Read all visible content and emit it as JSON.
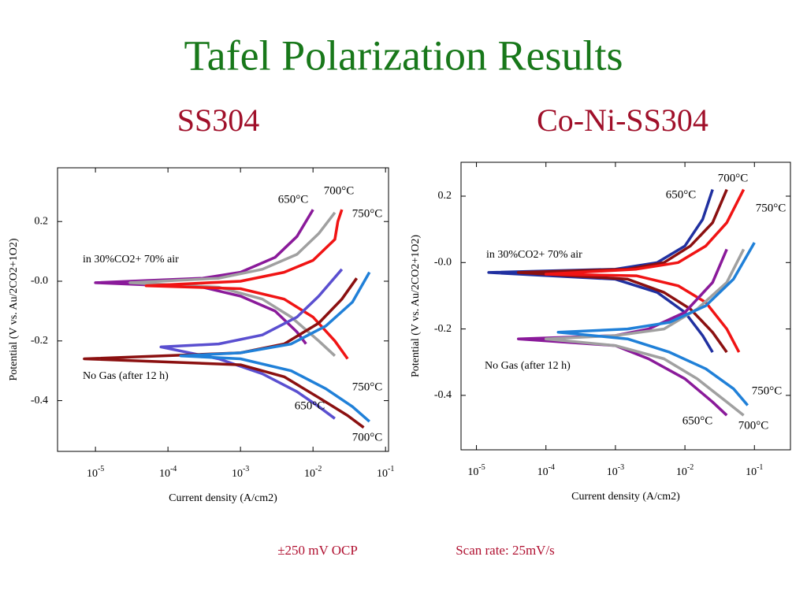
{
  "title": "Tafel Polarization Results",
  "notes": [
    "±250 mV OCP",
    "Scan rate: 25mV/s"
  ],
  "chart_data": [
    {
      "type": "line",
      "title": "SS304",
      "x_label": "Current density (A/cm2)",
      "y_label": "Potential (V vs. Au/2CO2+1O2)",
      "xscale": "log",
      "xlim": [
        3e-06,
        0.11
      ],
      "ylim": [
        -0.57,
        0.38
      ],
      "xticks": [
        {
          "value": 1e-05,
          "label": "10",
          "sup": "-5"
        },
        {
          "value": 0.0001,
          "label": "10",
          "sup": "-4"
        },
        {
          "value": 0.001,
          "label": "10",
          "sup": "-3"
        },
        {
          "value": 0.01,
          "label": "10",
          "sup": "-2"
        },
        {
          "value": 0.1,
          "label": "10",
          "sup": "-1"
        }
      ],
      "yticks": [
        0.2,
        {
          "value": 0,
          "label": "-0.0"
        },
        -0.2,
        -0.4
      ],
      "annotations": [
        "in 30%CO2+ 70% air",
        "No Gas (after 12 h)"
      ],
      "series": [
        {
          "name": "650°C",
          "color": "#8a1a9a",
          "x": [
            0.008,
            0.006,
            0.003,
            0.001,
            0.0003,
            1e-05,
            0.0003,
            0.001,
            0.003,
            0.006,
            0.01
          ],
          "values": [
            -0.21,
            -0.17,
            -0.1,
            -0.05,
            -0.02,
            -0.005,
            0.01,
            0.03,
            0.08,
            0.15,
            0.24
          ]
        },
        {
          "name": "700°C",
          "color": "#a0a0a0",
          "x": [
            0.02,
            0.012,
            0.005,
            0.002,
            0.0005,
            3e-05,
            0.0005,
            0.002,
            0.006,
            0.012,
            0.02
          ],
          "values": [
            -0.25,
            -0.2,
            -0.12,
            -0.06,
            -0.02,
            -0.005,
            0.01,
            0.04,
            0.09,
            0.16,
            0.23
          ]
        },
        {
          "name": "750°C",
          "color": "#f01414",
          "x": [
            0.03,
            0.02,
            0.01,
            0.004,
            0.001,
            5e-05,
            0.001,
            0.004,
            0.01,
            0.02,
            0.022,
            0.025
          ],
          "values": [
            -0.26,
            -0.2,
            -0.12,
            -0.06,
            -0.025,
            -0.015,
            0.0,
            0.03,
            0.07,
            0.14,
            0.2,
            0.24
          ]
        },
        {
          "name": "650°C",
          "color": "#5a4fd0",
          "x": [
            0.02,
            0.012,
            0.006,
            0.002,
            0.0005,
            8e-05,
            0.0005,
            0.002,
            0.006,
            0.012,
            0.025
          ],
          "values": [
            -0.46,
            -0.42,
            -0.37,
            -0.31,
            -0.26,
            -0.22,
            -0.21,
            -0.18,
            -0.12,
            -0.05,
            0.04
          ]
        },
        {
          "name": "700°C",
          "color": "#8b1010",
          "x": [
            0.05,
            0.03,
            0.012,
            0.004,
            0.001,
            7e-06,
            0.001,
            0.004,
            0.012,
            0.025,
            0.04
          ],
          "values": [
            -0.49,
            -0.45,
            -0.39,
            -0.32,
            -0.28,
            -0.26,
            -0.24,
            -0.21,
            -0.14,
            -0.06,
            0.01
          ]
        },
        {
          "name": "750°C",
          "color": "#2080d8",
          "x": [
            0.06,
            0.035,
            0.015,
            0.005,
            0.001,
            0.00015,
            0.001,
            0.005,
            0.015,
            0.035,
            0.06
          ],
          "values": [
            -0.47,
            -0.42,
            -0.36,
            -0.3,
            -0.26,
            -0.25,
            -0.24,
            -0.21,
            -0.15,
            -0.07,
            0.03
          ]
        }
      ]
    },
    {
      "type": "line",
      "title": "Co-Ni-SS304",
      "x_label": "Current density (A/cm2)",
      "y_label": "Potential (V vs. Au/2CO2+1O2)",
      "xscale": "log",
      "xlim": [
        6e-06,
        0.33
      ],
      "ylim": [
        -0.564,
        0.302
      ],
      "xticks": [
        {
          "value": 1e-05,
          "label": "10",
          "sup": "-5"
        },
        {
          "value": 0.0001,
          "label": "10",
          "sup": "-4"
        },
        {
          "value": 0.001,
          "label": "10",
          "sup": "-3"
        },
        {
          "value": 0.01,
          "label": "10",
          "sup": "-2"
        },
        {
          "value": 0.1,
          "label": "10",
          "sup": "-1"
        }
      ],
      "yticks": [
        0.2,
        {
          "value": 0,
          "label": "-0.0"
        },
        -0.2,
        -0.4
      ],
      "annotations": [
        "in 30%CO2+ 70% air",
        "No Gas (after 12 h)"
      ],
      "series": [
        {
          "name": "650°C",
          "color": "#2030a0",
          "x": [
            0.025,
            0.018,
            0.01,
            0.004,
            0.001,
            1.5e-05,
            0.001,
            0.004,
            0.01,
            0.018,
            0.025
          ],
          "values": [
            -0.27,
            -0.22,
            -0.15,
            -0.09,
            -0.05,
            -0.03,
            -0.02,
            0.0,
            0.05,
            0.13,
            0.22
          ]
        },
        {
          "name": "700°C",
          "color": "#8b1010",
          "x": [
            0.04,
            0.025,
            0.012,
            0.005,
            0.0015,
            4e-05,
            0.0015,
            0.005,
            0.012,
            0.025,
            0.04
          ],
          "values": [
            -0.27,
            -0.21,
            -0.14,
            -0.09,
            -0.05,
            -0.03,
            -0.02,
            0.0,
            0.05,
            0.12,
            0.22
          ]
        },
        {
          "name": "750°C",
          "color": "#f01414",
          "x": [
            0.06,
            0.04,
            0.02,
            0.008,
            0.002,
            0.0001,
            0.002,
            0.008,
            0.02,
            0.04,
            0.07
          ],
          "values": [
            -0.27,
            -0.2,
            -0.12,
            -0.07,
            -0.04,
            -0.035,
            -0.02,
            0.0,
            0.05,
            0.12,
            0.22
          ]
        },
        {
          "name": "650°C",
          "color": "#8a1a9a",
          "x": [
            0.04,
            0.025,
            0.01,
            0.003,
            0.001,
            4e-05,
            0.001,
            0.003,
            0.01,
            0.025,
            0.04
          ],
          "values": [
            -0.46,
            -0.42,
            -0.35,
            -0.29,
            -0.25,
            -0.23,
            -0.22,
            -0.2,
            -0.15,
            -0.06,
            0.04
          ]
        },
        {
          "name": "700°C",
          "color": "#a0a0a0",
          "x": [
            0.07,
            0.04,
            0.015,
            0.005,
            0.001,
            0.0001,
            0.001,
            0.005,
            0.015,
            0.04,
            0.07
          ],
          "values": [
            -0.46,
            -0.42,
            -0.35,
            -0.29,
            -0.25,
            -0.23,
            -0.22,
            -0.2,
            -0.14,
            -0.06,
            0.04
          ]
        },
        {
          "name": "750°C",
          "color": "#2080d8",
          "x": [
            0.08,
            0.05,
            0.02,
            0.006,
            0.0015,
            0.00015,
            0.0015,
            0.006,
            0.02,
            0.05,
            0.1
          ],
          "values": [
            -0.43,
            -0.38,
            -0.32,
            -0.27,
            -0.23,
            -0.21,
            -0.2,
            -0.18,
            -0.13,
            -0.05,
            0.06
          ]
        }
      ]
    }
  ]
}
